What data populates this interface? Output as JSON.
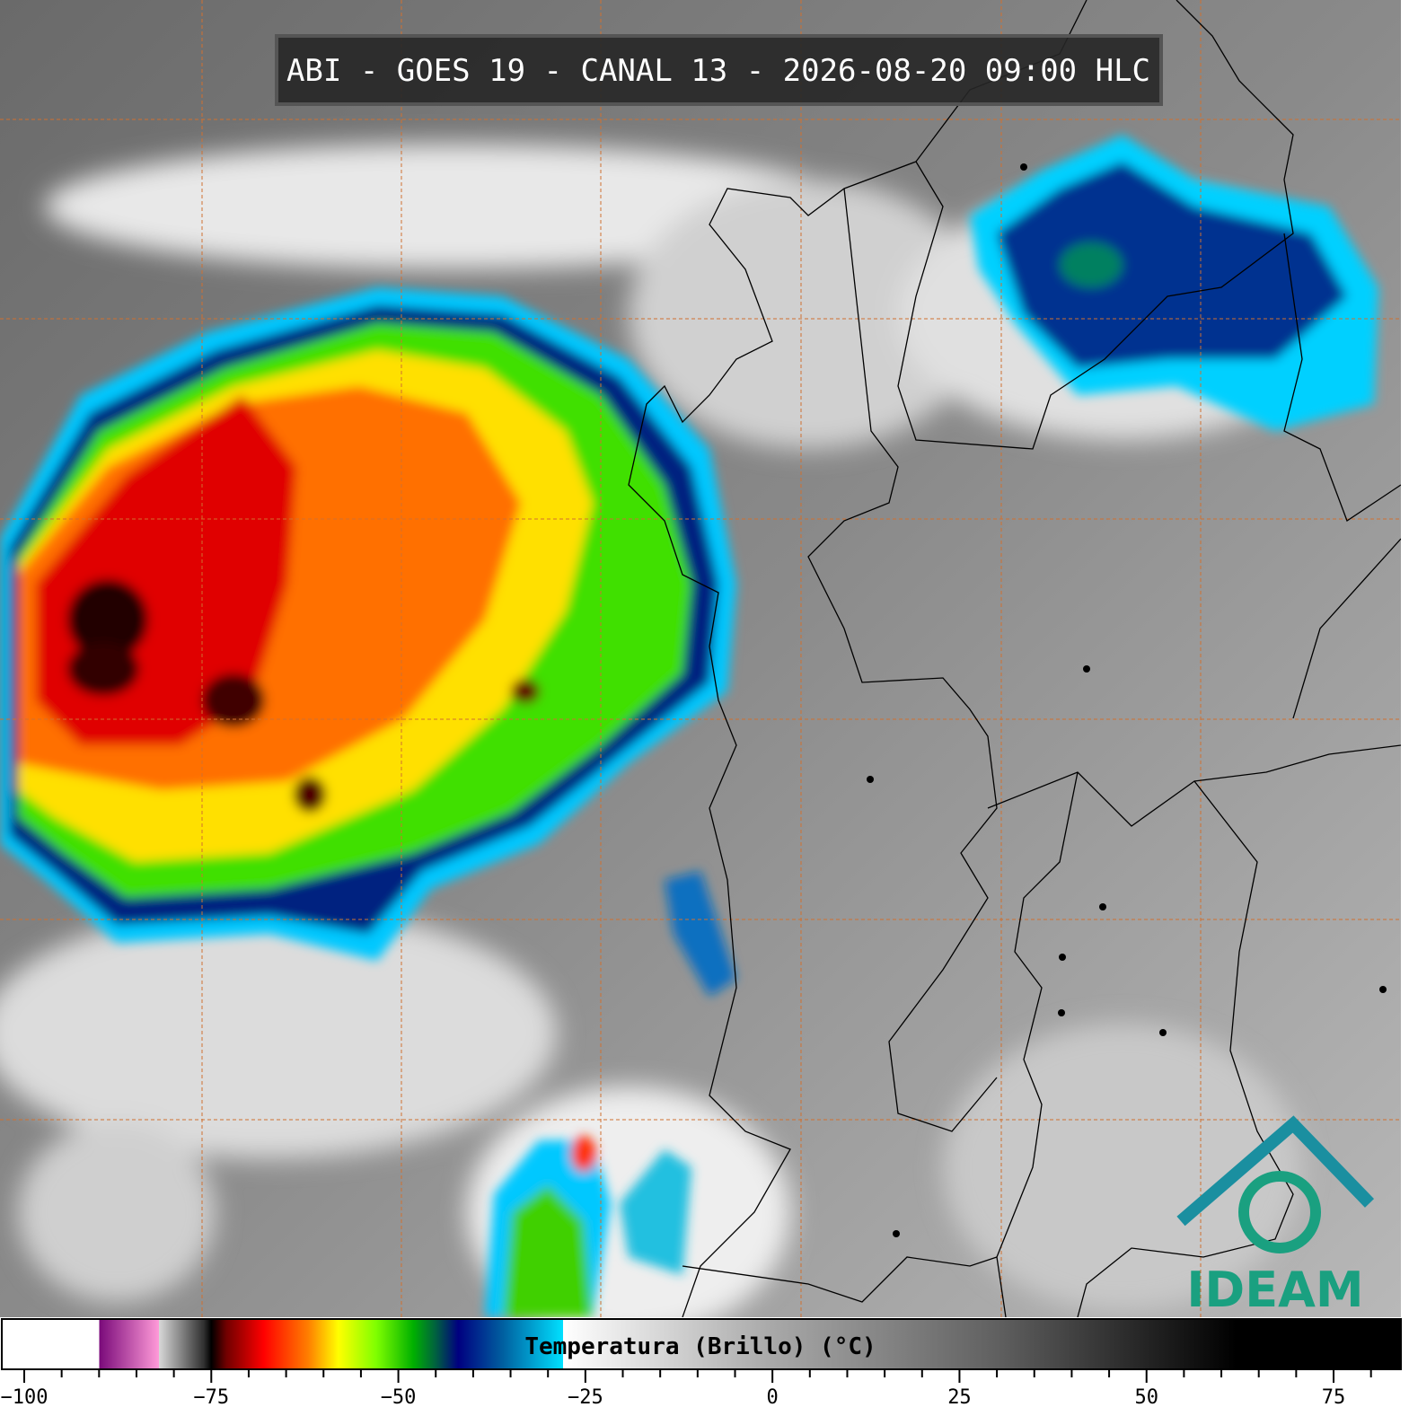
{
  "header": {
    "title": "ABI - GOES 19 - CANAL 13 - 2026-08-20 09:00 HLC"
  },
  "logo": {
    "text": "IDEAM"
  },
  "chart_data": {
    "type": "colorbar",
    "title": "Temperatura (Brillo) (°C)",
    "xlim": [
      -103,
      84
    ],
    "xticks": [
      {
        "value": -100,
        "label": "−100"
      },
      {
        "value": -75,
        "label": "−75"
      },
      {
        "value": -50,
        "label": "−50"
      },
      {
        "value": -25,
        "label": "−25"
      },
      0,
      25,
      50,
      75
    ],
    "xminorticks": [
      -95,
      -90,
      -85,
      -80,
      -70,
      -65,
      -60,
      -55,
      -45,
      -40,
      -35,
      -30,
      -20,
      -15,
      -10,
      -5,
      5,
      10,
      15,
      20,
      30,
      35,
      40,
      45,
      55,
      60,
      65,
      70,
      80
    ],
    "colorscale": [
      [
        -103,
        "#ffffff"
      ],
      [
        -90,
        "#ffffff"
      ],
      [
        -90,
        "#7a0a7a"
      ],
      [
        -82,
        "#ff9ad8"
      ],
      [
        -82,
        "#d8d8d8"
      ],
      [
        -76,
        "#303030"
      ],
      [
        -75,
        "#000000"
      ],
      [
        -73,
        "#700000"
      ],
      [
        -68,
        "#ff0000"
      ],
      [
        -62,
        "#ff8000"
      ],
      [
        -58,
        "#ffff00"
      ],
      [
        -53,
        "#80ff00"
      ],
      [
        -48,
        "#00b000"
      ],
      [
        -45,
        "#006040"
      ],
      [
        -42,
        "#000080"
      ],
      [
        -36,
        "#0060a0"
      ],
      [
        -28,
        "#00e0ff"
      ],
      [
        -28,
        "#ffffff"
      ],
      [
        0,
        "#a8a8a8"
      ],
      [
        30,
        "#606060"
      ],
      [
        62,
        "#000000"
      ],
      [
        84,
        "#000000"
      ]
    ]
  }
}
